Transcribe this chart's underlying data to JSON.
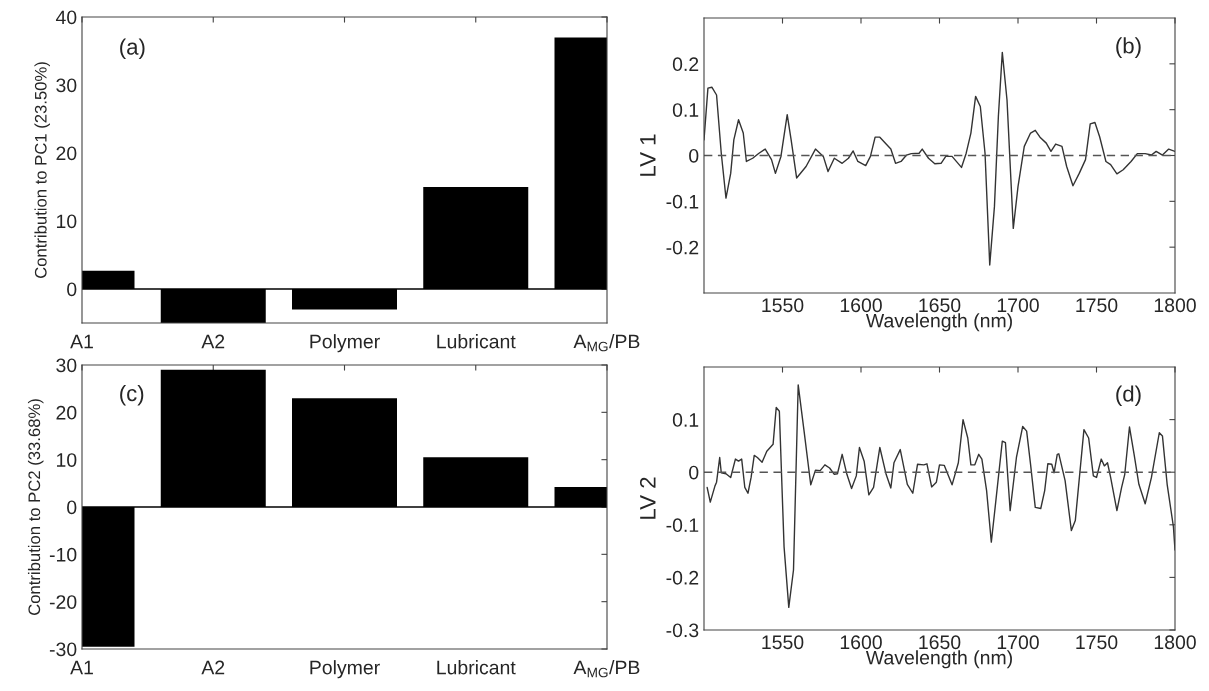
{
  "chart_data": [
    {
      "type": "bar",
      "categories": [
        "A1",
        "A2",
        "Polymer",
        "Lubricant",
        "A$_{MG}$/PB"
      ],
      "values": [
        2.7,
        -5,
        -3,
        15,
        37
      ],
      "color": "#000000",
      "ylabel": "Contribution to PC1 (23.50%)",
      "ylim": [
        -5,
        40
      ],
      "yticks": [
        0,
        10,
        20,
        30,
        40
      ],
      "annotations": [
        "(a)"
      ],
      "grid": false,
      "ref_lines": [
        {
          "axis": "y",
          "value": 0,
          "color": "#000000",
          "line_style": "solid"
        }
      ]
    },
    {
      "type": "line",
      "x": [
        1500,
        1502.5,
        1505,
        1508,
        1511,
        1514,
        1517,
        1519,
        1522,
        1525,
        1527,
        1531,
        1535,
        1539,
        1543,
        1545.5,
        1549,
        1553,
        1555.5,
        1559,
        1565,
        1571,
        1576,
        1579,
        1583,
        1588,
        1592,
        1595,
        1598,
        1603,
        1606,
        1609,
        1612,
        1616,
        1619,
        1622,
        1625.5,
        1629,
        1632,
        1637,
        1639,
        1643,
        1647,
        1651,
        1654,
        1658,
        1664,
        1667,
        1670,
        1673,
        1676,
        1679,
        1682,
        1685,
        1687.5,
        1690,
        1693,
        1697,
        1700,
        1704,
        1708,
        1711,
        1714,
        1718,
        1721,
        1724,
        1728,
        1731,
        1735,
        1739,
        1743,
        1746,
        1749,
        1752,
        1756,
        1759,
        1763,
        1767,
        1772,
        1776,
        1781,
        1785,
        1788,
        1792,
        1796,
        1800
      ],
      "values": [
        0.034,
        0.147,
        0.149,
        0.132,
        0.005,
        -0.093,
        -0.039,
        0.034,
        0.078,
        0.049,
        -0.013,
        -0.006,
        0.005,
        0.014,
        -0.009,
        -0.039,
        -0.002,
        0.089,
        0.034,
        -0.049,
        -0.024,
        0.014,
        -0.002,
        -0.035,
        -0.006,
        -0.017,
        -0.006,
        0.01,
        -0.013,
        -0.022,
        -0.002,
        0.04,
        0.04,
        0.025,
        0.014,
        -0.017,
        -0.013,
        0.001,
        0.004,
        0.005,
        0.014,
        -0.006,
        -0.018,
        -0.017,
        -0.002,
        -0.002,
        -0.026,
        0.005,
        0.049,
        0.129,
        0.107,
        0.005,
        -0.239,
        -0.111,
        0.085,
        0.225,
        0.121,
        -0.159,
        -0.068,
        0.02,
        0.049,
        0.055,
        0.04,
        0.027,
        0.009,
        0.025,
        0.02,
        -0.024,
        -0.066,
        -0.039,
        -0.009,
        0.069,
        0.072,
        0.041,
        -0.013,
        -0.02,
        -0.04,
        -0.031,
        -0.013,
        0.004,
        0.004,
        0.001,
        0.009,
        0.001,
        0.014,
        0.009
      ],
      "color": "#333333",
      "xlabel": "Wavelength (nm)",
      "ylabel": "LV 1",
      "xlim": [
        1500,
        1800
      ],
      "xticks": [
        1550,
        1600,
        1650,
        1700,
        1750,
        1800
      ],
      "ylim": [
        -0.3,
        0.3
      ],
      "yticks": [
        -0.2,
        -0.1,
        0,
        0.1,
        0.2
      ],
      "ref_lines": [
        {
          "axis": "y",
          "value": 0,
          "color": "#555555",
          "line_style": "dashed"
        }
      ],
      "annotations": [
        "(b)"
      ],
      "grid": false
    },
    {
      "type": "bar",
      "categories": [
        "A1",
        "A2",
        "Polymer",
        "Lubricant",
        "A$_{MG}$/PB"
      ],
      "values": [
        -29.5,
        29,
        23,
        10.5,
        4.2
      ],
      "color": "#000000",
      "ylabel": "Contribution to PC2 (33.68%)",
      "ylim": [
        -30,
        30
      ],
      "yticks": [
        -30,
        -20,
        -10,
        0,
        10,
        20,
        30
      ],
      "annotations": [
        "(c)"
      ],
      "grid": false,
      "ref_lines": [
        {
          "axis": "y",
          "value": 0,
          "color": "#000000",
          "line_style": "solid"
        }
      ]
    },
    {
      "type": "line",
      "x": [
        1502,
        1504,
        1507,
        1508,
        1510,
        1511,
        1514,
        1517,
        1520,
        1522,
        1524,
        1526,
        1528,
        1530,
        1532,
        1534,
        1537,
        1540,
        1544,
        1546,
        1548,
        1551,
        1554,
        1557,
        1560,
        1564,
        1568,
        1571,
        1574,
        1577,
        1580,
        1583,
        1585,
        1588,
        1591,
        1594,
        1597,
        1599,
        1602,
        1605,
        1608,
        1612,
        1616,
        1619,
        1621,
        1625,
        1629.5,
        1633,
        1636,
        1640,
        1642,
        1645,
        1648,
        1650,
        1653,
        1658,
        1662,
        1665,
        1668,
        1670,
        1672.5,
        1675,
        1677,
        1680,
        1683,
        1685,
        1690,
        1692,
        1695,
        1699,
        1703,
        1705.5,
        1708,
        1711,
        1714.5,
        1717,
        1719,
        1721.5,
        1723,
        1725,
        1726,
        1730,
        1734,
        1736.5,
        1742,
        1745,
        1748,
        1750,
        1753,
        1755,
        1757,
        1759,
        1763,
        1766,
        1768,
        1771,
        1774,
        1777,
        1781,
        1785,
        1790,
        1792,
        1795,
        1799,
        1800
      ],
      "values": [
        -0.029,
        -0.057,
        -0.026,
        -0.019,
        0.028,
        -0.001,
        -0.003,
        -0.01,
        0.025,
        0.021,
        0.025,
        -0.029,
        -0.04,
        -0.01,
        0.032,
        0.028,
        0.019,
        0.04,
        0.053,
        0.123,
        0.116,
        -0.142,
        -0.257,
        -0.186,
        0.166,
        0.072,
        -0.024,
        0.004,
        0.003,
        0.014,
        0.008,
        -0.004,
        -0.003,
        0.034,
        -0.004,
        -0.031,
        -0.007,
        0.047,
        0.021,
        -0.043,
        -0.029,
        0.047,
        -0.004,
        -0.03,
        0.018,
        0.043,
        -0.023,
        -0.04,
        0.015,
        0.014,
        0.016,
        -0.028,
        -0.019,
        0.014,
        0.013,
        -0.024,
        0.018,
        0.1,
        0.065,
        0.014,
        0.014,
        0.034,
        0.025,
        -0.035,
        -0.133,
        -0.079,
        0.059,
        0.056,
        -0.073,
        0.028,
        0.087,
        0.078,
        0.015,
        -0.067,
        -0.069,
        -0.035,
        0.016,
        0.015,
        -0.001,
        0.034,
        0.035,
        -0.016,
        -0.111,
        -0.092,
        0.081,
        0.065,
        -0.007,
        -0.01,
        0.025,
        0.012,
        0.018,
        -0.01,
        -0.073,
        -0.029,
        -0.004,
        0.086,
        0.033,
        -0.023,
        -0.06,
        -0.01,
        0.075,
        0.069,
        -0.023,
        -0.104,
        -0.148
      ],
      "color": "#333333",
      "xlabel": "Wavelength (nm)",
      "ylabel": "LV 2",
      "xlim": [
        1500,
        1800
      ],
      "xticks": [
        1550,
        1600,
        1650,
        1700,
        1750,
        1800
      ],
      "ylim": [
        -0.3,
        0.2
      ],
      "yticks": [
        -0.3,
        -0.2,
        -0.1,
        0,
        0.1
      ],
      "ref_lines": [
        {
          "axis": "y",
          "value": 0,
          "color": "#555555",
          "line_style": "dashed"
        }
      ],
      "annotations": [
        "(d)"
      ],
      "grid": false
    }
  ]
}
